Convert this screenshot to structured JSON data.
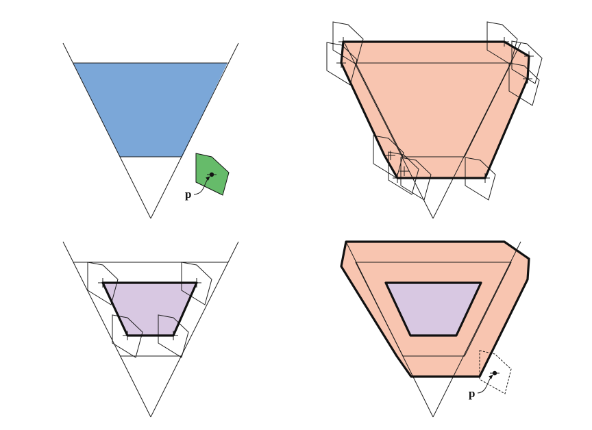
{
  "panels": [
    {
      "id": "top-left",
      "point_label": "p"
    },
    {
      "id": "top-right"
    },
    {
      "id": "bottom-left"
    },
    {
      "id": "bottom-right",
      "point_label": "p"
    }
  ],
  "colors": {
    "blue_fill": "#7ba7d8",
    "green_fill": "#66bb6a",
    "salmon_fill": "#f8c5b0",
    "lavender_fill": "#d8c8e2",
    "stroke": "#111111"
  }
}
